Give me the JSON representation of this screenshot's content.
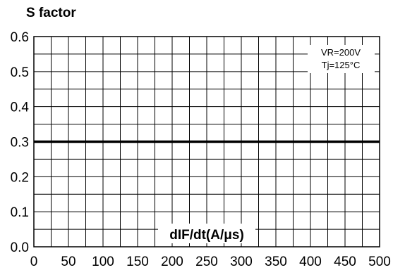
{
  "chart_data": {
    "type": "line",
    "title": "S factor",
    "xlabel": "dIF/dt(A/μs)",
    "ylabel": "",
    "xlim": [
      0,
      500
    ],
    "ylim": [
      0,
      0.6
    ],
    "xticks": [
      "0",
      "50",
      "100",
      "150",
      "200",
      "250",
      "300",
      "350",
      "400",
      "450",
      "500"
    ],
    "yticks": [
      "0.0",
      "0.1",
      "0.2",
      "0.3",
      "0.4",
      "0.5",
      "0.6"
    ],
    "grid": true,
    "annotations": [
      "VR=200V",
      "Tj=125°C"
    ],
    "series": [
      {
        "x": [
          0,
          500
        ],
        "y": [
          0.3,
          0.3
        ]
      }
    ]
  }
}
